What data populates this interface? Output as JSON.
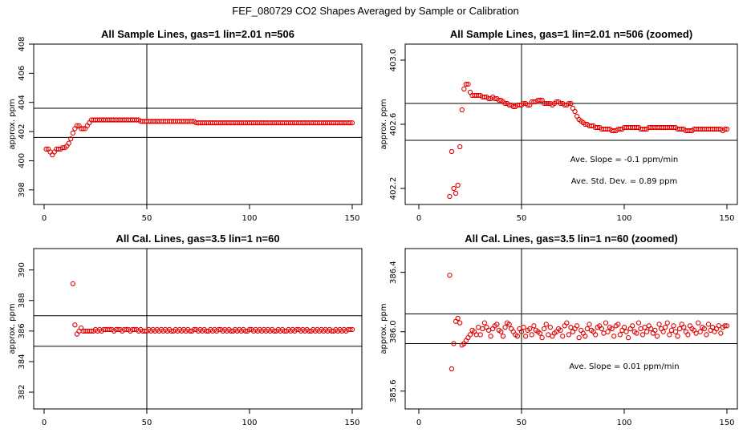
{
  "figure_title": "FEF_080729  CO2 Shapes Averaged by Sample or Calibration",
  "colors": {
    "points": "#e00000",
    "axes": "#000000",
    "background": "#ffffff"
  },
  "chart_data": [
    {
      "type": "scatter",
      "title": "All Sample Lines, gas=1 lin=2.01 n=506",
      "xlabel": "",
      "ylabel": "approx. ppm",
      "xlim": [
        0,
        150
      ],
      "ylim": [
        397,
        408
      ],
      "xticks": [
        0,
        50,
        100,
        150
      ],
      "xtick_labels": [
        "0",
        "50",
        "100",
        "150"
      ],
      "yticks": [
        398,
        400,
        402,
        404,
        406,
        408
      ],
      "ytick_labels": [
        "398",
        "400",
        "402",
        "404",
        "406",
        "408"
      ],
      "hlines": [
        403.6,
        401.6
      ],
      "vline": 50,
      "annotations": [],
      "series": [
        {
          "name": "sample lines",
          "x_start": 1,
          "x_step": 1,
          "values": [
            400.8,
            400.8,
            400.6,
            400.4,
            400.6,
            400.8,
            400.8,
            400.8,
            400.9,
            400.9,
            401.0,
            401.2,
            401.5,
            401.9,
            402.2,
            402.4,
            402.4,
            402.2,
            402.2,
            402.2,
            402.4,
            402.6,
            402.8,
            402.8,
            402.8,
            402.8,
            402.8,
            402.8,
            402.8,
            402.8,
            402.8,
            402.8,
            402.8,
            402.8,
            402.8,
            402.8,
            402.8,
            402.8,
            402.8,
            402.8,
            402.8,
            402.8,
            402.8,
            402.8,
            402.8,
            402.8,
            402.7,
            402.7,
            402.7,
            402.7,
            402.7,
            402.7,
            402.7,
            402.7,
            402.7,
            402.7,
            402.7,
            402.7,
            402.7,
            402.7,
            402.7,
            402.7,
            402.7,
            402.7,
            402.7,
            402.7,
            402.7,
            402.7,
            402.7,
            402.7,
            402.7,
            402.7,
            402.7,
            402.6,
            402.6,
            402.6,
            402.6,
            402.6,
            402.6,
            402.6,
            402.6,
            402.6,
            402.6,
            402.6,
            402.6,
            402.6,
            402.6,
            402.6,
            402.6,
            402.6,
            402.6,
            402.6,
            402.6,
            402.6,
            402.6,
            402.6,
            402.6,
            402.6,
            402.6,
            402.6,
            402.6,
            402.6,
            402.6,
            402.6,
            402.6,
            402.6,
            402.6,
            402.6,
            402.6,
            402.6,
            402.6,
            402.6,
            402.6,
            402.6,
            402.6,
            402.6,
            402.6,
            402.6,
            402.6,
            402.6,
            402.6,
            402.6,
            402.6,
            402.6,
            402.6,
            402.6,
            402.6,
            402.6,
            402.6,
            402.6,
            402.6,
            402.6,
            402.6,
            402.6,
            402.6,
            402.6,
            402.6,
            402.6,
            402.6,
            402.6,
            402.6,
            402.6,
            402.6,
            402.6,
            402.6,
            402.6,
            402.6,
            402.6,
            402.6,
            402.6
          ]
        }
      ]
    },
    {
      "type": "scatter",
      "title": "All Sample Lines, gas=1 lin=2.01 n=506 (zoomed)",
      "xlabel": "",
      "ylabel": "approx. ppm",
      "xlim": [
        0,
        150
      ],
      "ylim": [
        402.1,
        403.1
      ],
      "xticks": [
        0,
        50,
        100,
        150
      ],
      "xtick_labels": [
        "0",
        "50",
        "100",
        "150"
      ],
      "yticks": [
        402.2,
        402.6,
        403.0
      ],
      "ytick_labels": [
        "402.2",
        "402.6",
        "403.0"
      ],
      "hlines": [
        402.73,
        402.5
      ],
      "vline": 50,
      "annotations": [
        "Ave. Slope =  -0.1  ppm/min",
        "Ave. Std. Dev. =  0.89  ppm"
      ],
      "series": [
        {
          "name": "sample lines (zoomed)",
          "x_start": 15,
          "x_step": 1,
          "values": [
            402.15,
            402.43,
            402.2,
            402.17,
            402.22,
            402.46,
            402.69,
            402.82,
            402.85,
            402.85,
            402.8,
            402.78,
            402.78,
            402.78,
            402.78,
            402.78,
            402.77,
            402.77,
            402.77,
            402.76,
            402.76,
            402.77,
            402.76,
            402.76,
            402.75,
            402.75,
            402.74,
            402.73,
            402.73,
            402.72,
            402.72,
            402.71,
            402.71,
            402.72,
            402.72,
            402.72,
            402.73,
            402.73,
            402.72,
            402.72,
            402.74,
            402.74,
            402.74,
            402.75,
            402.75,
            402.75,
            402.73,
            402.73,
            402.73,
            402.73,
            402.72,
            402.73,
            402.74,
            402.74,
            402.73,
            402.73,
            402.72,
            402.72,
            402.73,
            402.73,
            402.7,
            402.68,
            402.65,
            402.63,
            402.62,
            402.61,
            402.6,
            402.6,
            402.59,
            402.59,
            402.59,
            402.58,
            402.58,
            402.58,
            402.57,
            402.57,
            402.57,
            402.57,
            402.57,
            402.56,
            402.56,
            402.56,
            402.57,
            402.57,
            402.57,
            402.58,
            402.58,
            402.58,
            402.58,
            402.58,
            402.58,
            402.58,
            402.58,
            402.57,
            402.57,
            402.57,
            402.57,
            402.58,
            402.58,
            402.58,
            402.58,
            402.58,
            402.58,
            402.58,
            402.58,
            402.58,
            402.58,
            402.58,
            402.58,
            402.58,
            402.58,
            402.57,
            402.57,
            402.57,
            402.57,
            402.56,
            402.56,
            402.56,
            402.56,
            402.57,
            402.57,
            402.57,
            402.57,
            402.57,
            402.57,
            402.57,
            402.57,
            402.57,
            402.57,
            402.57,
            402.57,
            402.57,
            402.57,
            402.56,
            402.57,
            402.57
          ]
        }
      ]
    },
    {
      "type": "scatter",
      "title": "All Cal. Lines, gas=3.5 lin=1 n=60",
      "xlabel": "",
      "ylabel": "approx. ppm",
      "xlim": [
        0,
        150
      ],
      "ylim": [
        380.9,
        391.4
      ],
      "xticks": [
        0,
        50,
        100,
        150
      ],
      "xtick_labels": [
        "0",
        "50",
        "100",
        "150"
      ],
      "yticks": [
        382,
        384,
        386,
        388,
        390
      ],
      "ytick_labels": [
        "382",
        "384",
        "386",
        "388",
        "390"
      ],
      "hlines": [
        387.0,
        385.0
      ],
      "vline": 50,
      "annotations": [],
      "series": [
        {
          "name": "cal lines",
          "x_start": 14,
          "x_step": 1,
          "values": [
            389.1,
            386.4,
            385.8,
            386.0,
            386.2,
            386.0,
            386.0,
            386.0,
            386.0,
            386.0,
            386.0,
            386.1,
            386.0,
            386.1,
            386.0,
            386.1,
            386.1,
            386.1,
            386.1,
            386.1,
            386.0,
            386.1,
            386.1,
            386.1,
            386.0,
            386.1,
            386.1,
            386.1,
            386.0,
            386.1,
            386.1,
            386.1,
            386.0,
            386.1,
            386.0,
            386.0,
            386.0,
            386.1,
            386.0,
            386.1,
            386.0,
            386.1,
            386.0,
            386.1,
            386.0,
            386.1,
            386.0,
            386.1,
            386.0,
            386.0,
            386.1,
            386.0,
            386.1,
            386.0,
            386.1,
            386.0,
            386.1,
            386.0,
            386.0,
            386.1,
            386.1,
            386.0,
            386.1,
            386.0,
            386.1,
            386.0,
            386.0,
            386.1,
            386.0,
            386.1,
            386.0,
            386.1,
            386.1,
            386.0,
            386.1,
            386.0,
            386.1,
            386.0,
            386.0,
            386.1,
            386.0,
            386.1,
            386.0,
            386.1,
            386.0,
            386.0,
            386.1,
            386.1,
            386.0,
            386.1,
            386.0,
            386.1,
            386.0,
            386.1,
            386.0,
            386.1,
            386.0,
            386.1,
            386.0,
            386.0,
            386.1,
            386.0,
            386.1,
            386.0,
            386.0,
            386.1,
            386.0,
            386.1,
            386.0,
            386.1,
            386.1,
            386.0,
            386.1,
            386.0,
            386.1,
            386.0,
            386.0,
            386.1,
            386.0,
            386.1,
            386.0,
            386.1,
            386.0,
            386.1,
            386.0,
            386.1,
            386.0,
            386.0,
            386.1,
            386.0,
            386.1,
            386.0,
            386.1,
            386.0,
            386.1,
            386.1,
            386.1
          ]
        }
      ]
    },
    {
      "type": "scatter",
      "title": "All Cal. Lines, gas=3.5 lin=1 n=60 (zoomed)",
      "xlabel": "",
      "ylabel": "approx. ppm",
      "xlim": [
        0,
        150
      ],
      "ylim": [
        385.48,
        386.56
      ],
      "xticks": [
        0,
        50,
        100,
        150
      ],
      "xtick_labels": [
        "0",
        "50",
        "100",
        "150"
      ],
      "yticks": [
        385.6,
        386.0,
        386.4
      ],
      "ytick_labels": [
        "385.6",
        "386.0",
        "386.4"
      ],
      "hlines": [
        386.12,
        385.92
      ],
      "vline": 50,
      "annotations": [
        "Ave. Slope =  0.01  ppm/min"
      ],
      "series": [
        {
          "name": "cal lines (zoomed)",
          "x_start": 15,
          "x_step": 1,
          "values": [
            386.38,
            385.75,
            385.92,
            386.07,
            386.09,
            386.06,
            385.91,
            385.92,
            385.94,
            385.96,
            385.98,
            386.01,
            386.0,
            385.98,
            386.03,
            385.98,
            386.02,
            386.06,
            386.03,
            386.01,
            385.97,
            386.02,
            386.04,
            386.05,
            386.01,
            386.0,
            385.97,
            386.03,
            386.06,
            386.05,
            386.02,
            386.0,
            385.98,
            385.97,
            386.02,
            386.0,
            386.03,
            385.97,
            386.01,
            386.02,
            385.98,
            386.04,
            386.01,
            386.0,
            385.99,
            385.96,
            386.02,
            386.05,
            385.98,
            386.03,
            385.97,
            385.99,
            386.0,
            386.02,
            386.01,
            385.97,
            386.04,
            386.06,
            385.98,
            386.03,
            386.0,
            386.02,
            386.04,
            385.96,
            386.01,
            385.99,
            385.97,
            386.02,
            386.05,
            386.01,
            386.0,
            385.98,
            386.03,
            386.04,
            386.02,
            385.99,
            386.06,
            386.0,
            386.03,
            386.02,
            385.97,
            386.04,
            386.05,
            385.98,
            386.01,
            386.03,
            386.0,
            385.96,
            386.02,
            386.04,
            386.0,
            385.99,
            386.06,
            386.02,
            385.98,
            386.03,
            386.0,
            386.04,
            386.02,
            385.99,
            386.01,
            385.97,
            386.05,
            386.02,
            386.0,
            386.03,
            386.06,
            385.98,
            386.01,
            386.04,
            386.0,
            385.97,
            386.02,
            386.05,
            386.03,
            386.0,
            385.98,
            386.04,
            386.02,
            386.01,
            385.99,
            386.06,
            386.0,
            386.03,
            386.02,
            385.98,
            386.05,
            386.01,
            386.03,
            386.0,
            386.02,
            386.04,
            385.99,
            386.03,
            386.04,
            386.04
          ]
        }
      ]
    }
  ]
}
